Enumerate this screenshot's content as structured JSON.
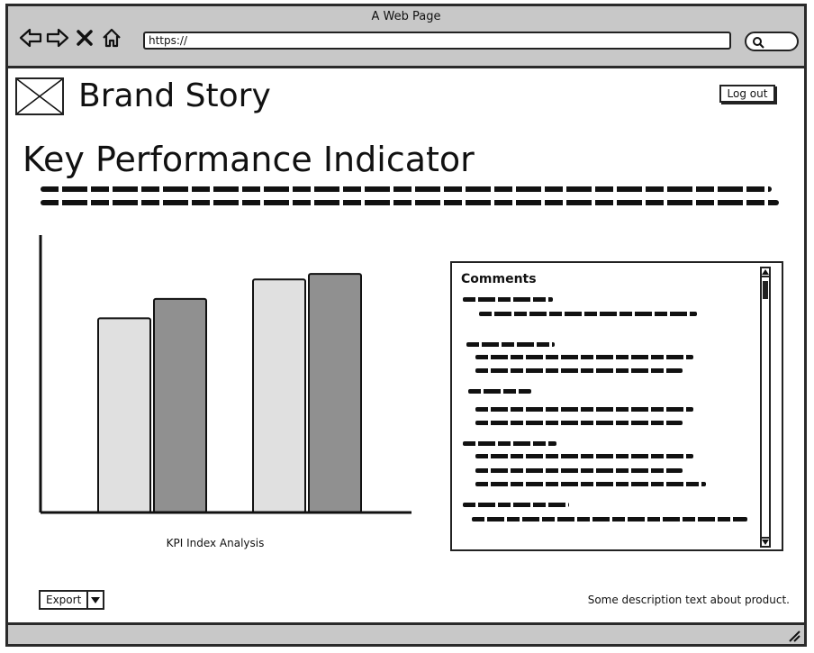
{
  "window": {
    "title": "A Web Page"
  },
  "url": {
    "value": "https://"
  },
  "header": {
    "brand": "Brand Story",
    "logout_label": "Log out"
  },
  "main": {
    "title": "Key Performance Indicator"
  },
  "chart_caption": "KPI Index Analysis",
  "chart_data": {
    "type": "bar",
    "categories": [
      "",
      ""
    ],
    "series": [
      {
        "values": [
          70,
          84
        ],
        "color": "#e0e0e0"
      },
      {
        "values": [
          77,
          86
        ],
        "color": "#909090"
      }
    ],
    "ylim": [
      0,
      100
    ],
    "grid": false,
    "title": "",
    "xlabel": "",
    "ylabel": ""
  },
  "comments": {
    "title": "Comments"
  },
  "footer": {
    "export_label": "Export",
    "description": "Some description text about product."
  },
  "icons": {
    "back": "arrow-left-icon",
    "forward": "arrow-right-icon",
    "stop": "close-icon",
    "home": "home-icon",
    "search": "search-icon"
  }
}
